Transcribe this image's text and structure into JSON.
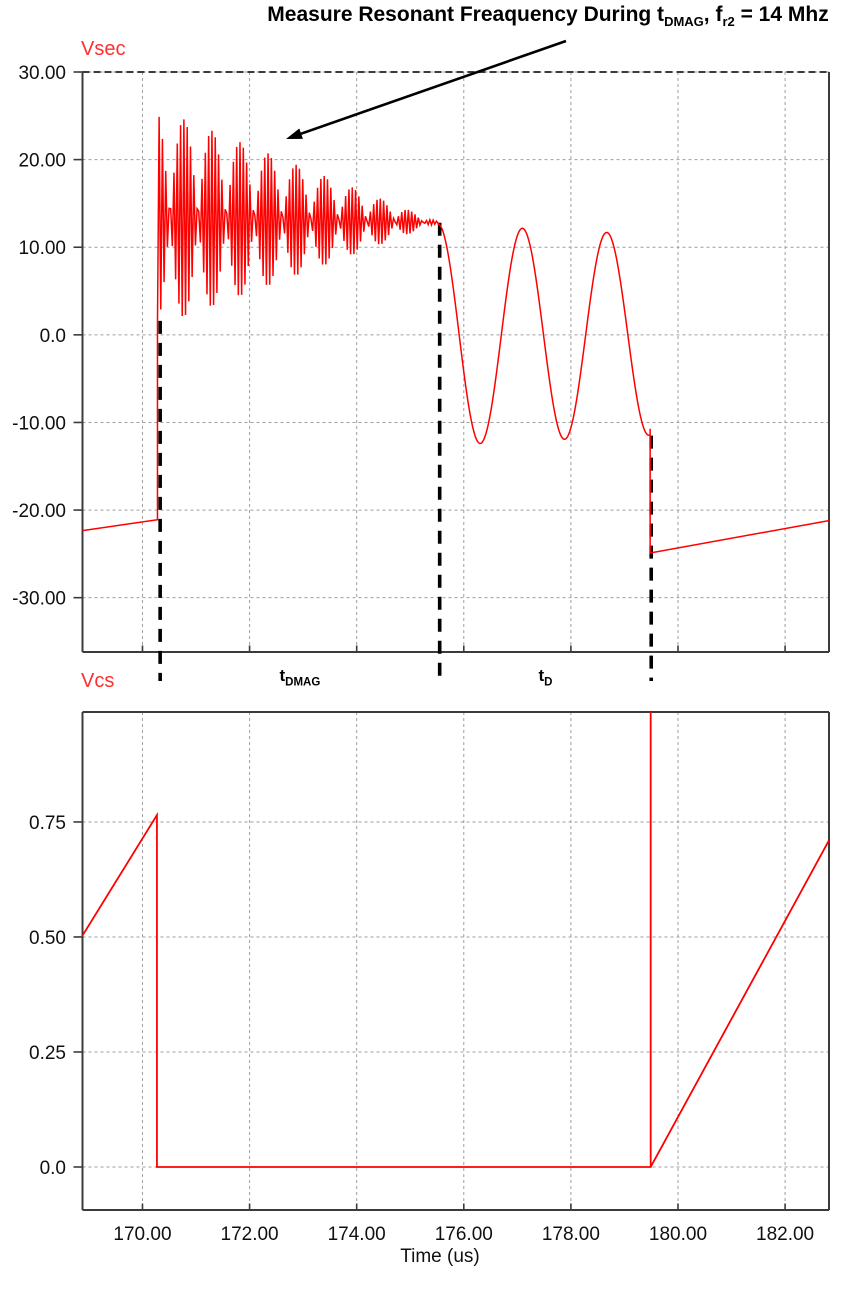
{
  "title": {
    "prefix": "Measure Resonant Freaquency During t",
    "sub1": "DMAG",
    "mid": ", f",
    "sub2": "r2",
    "suffix": " = 14 Mhz"
  },
  "colors": {
    "trace": "#fe0000",
    "trace_label": "#ff2f2f",
    "grid": "#9e9e9e",
    "axis": "#3b3b3b",
    "marker": "#000000",
    "text": "#101010"
  },
  "chart_data": {
    "type": "line",
    "title": "Measure Resonant Freaquency During tDMAG, fr2 = 14 Mhz",
    "x_axis": {
      "label": "Time (us)",
      "range": [
        168.88,
        182.82
      ],
      "ticks": [
        {
          "v": 170,
          "label": "170.00"
        },
        {
          "v": 172,
          "label": "172.00"
        },
        {
          "v": 174,
          "label": "174.00"
        },
        {
          "v": 176,
          "label": "176.00"
        },
        {
          "v": 178,
          "label": "178.00"
        },
        {
          "v": 180,
          "label": "180.00"
        },
        {
          "v": 182,
          "label": "182.00"
        }
      ],
      "grid": true
    },
    "plots": [
      {
        "name": "Vsec",
        "y_range": [
          -36.2,
          30
        ],
        "y_ticks": [
          {
            "v": 30,
            "label": "30.00"
          },
          {
            "v": 20,
            "label": "20.00"
          },
          {
            "v": 10,
            "label": "10.00"
          },
          {
            "v": 0,
            "label": "0.0"
          },
          {
            "v": -10,
            "label": "-10.00"
          },
          {
            "v": -20,
            "label": "-20.00"
          },
          {
            "v": -30,
            "label": "-30.00"
          }
        ],
        "series": {
          "left_segment": [
            [
              168.88,
              -22.35
            ],
            [
              170.28,
              -21.1
            ]
          ],
          "ring": {
            "t_start": 170.28,
            "t_end": 175.52,
            "resonant_freq_label": "fr2 = 14 Mhz",
            "env_top": [
              25.8,
              12.9
            ],
            "env_bottom": [
              0.9,
              12.75
            ],
            "samples": 170,
            "phase_step_cycles": 0.4707,
            "phase0_cycles": 0.72
          },
          "dcm_ring": {
            "t_start": 175.52,
            "t_end": 179.48,
            "amplitude": 12.65,
            "period_us": 1.575,
            "decay_per_us": 0.025,
            "offset": 0,
            "end_notch": 0.7
          },
          "end_segment": [
            [
              179.48,
              -24.9
            ],
            [
              182.82,
              -21.2
            ]
          ]
        }
      },
      {
        "name": "Vcs",
        "y_range": [
          -0.0935,
          0.989
        ],
        "y_ticks": [
          {
            "v": 0.75,
            "label": "0.75"
          },
          {
            "v": 0.5,
            "label": "0.50"
          },
          {
            "v": 0.25,
            "label": "0.25"
          },
          {
            "v": 0.0,
            "label": "0.0"
          }
        ],
        "series": {
          "points": [
            [
              168.88,
              0.503
            ],
            [
              170.27,
              0.765
            ],
            [
              170.27,
              0.0
            ],
            [
              179.49,
              0.0
            ],
            [
              179.49,
              0.989
            ],
            [
              179.49,
              0.0
            ],
            [
              182.82,
              0.71
            ]
          ]
        }
      }
    ],
    "markers": {
      "times": [
        170.33,
        175.55,
        179.5
      ],
      "top_values": [
        1.6,
        12.8,
        -11.5
      ],
      "labels": [
        {
          "base": "t",
          "sub": "DMAG"
        },
        {
          "base": "t",
          "sub": "D"
        }
      ]
    },
    "annotation": {
      "arrow": {
        "from": [
          566,
          41
        ],
        "to": [
          286,
          139
        ]
      }
    }
  }
}
